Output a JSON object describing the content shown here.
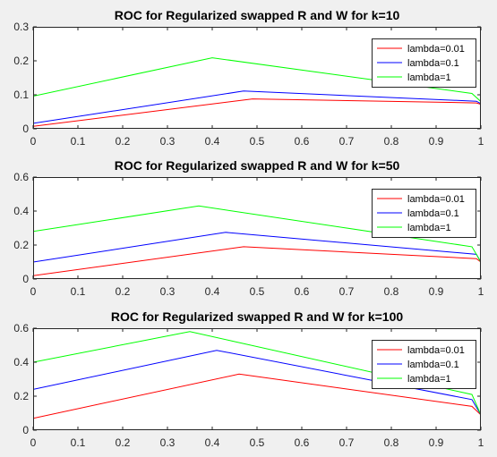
{
  "figure": {
    "background": "#f0f0f0",
    "axes_background": "#ffffff"
  },
  "colors": {
    "lambda_0_01": "#ff0000",
    "lambda_0_1": "#0000ff",
    "lambda_1": "#00ff00"
  },
  "chart_data": [
    {
      "type": "line",
      "title": "ROC for Regularized swapped R and W for k=10",
      "xlabel": "",
      "ylabel": "",
      "xlim": [
        0,
        1
      ],
      "ylim": [
        0,
        0.3
      ],
      "xticks": [
        "0",
        "0.1",
        "0.2",
        "0.3",
        "0.4",
        "0.5",
        "0.6",
        "0.7",
        "0.8",
        "0.9",
        "1"
      ],
      "yticks": [
        "0",
        "0.1",
        "0.2",
        "0.3"
      ],
      "grid": false,
      "legend_position": "top-right",
      "series": [
        {
          "name": "lambda=0.01",
          "color": "#ff0000",
          "x": [
            0,
            0,
            0.49,
            0.99,
            1
          ],
          "y": [
            0,
            0.007,
            0.088,
            0.076,
            0.072
          ]
        },
        {
          "name": "lambda=0.1",
          "color": "#0000ff",
          "x": [
            0,
            0,
            0.47,
            0.99,
            1
          ],
          "y": [
            0,
            0.016,
            0.111,
            0.081,
            0.074
          ]
        },
        {
          "name": "lambda=1",
          "color": "#00ff00",
          "x": [
            0,
            0,
            0.4,
            0.98,
            1
          ],
          "y": [
            0.07,
            0.096,
            0.209,
            0.104,
            0.08
          ]
        }
      ]
    },
    {
      "type": "line",
      "title": "ROC for Regularized swapped R and W for k=50",
      "xlabel": "",
      "ylabel": "",
      "xlim": [
        0,
        1
      ],
      "ylim": [
        0,
        0.6
      ],
      "xticks": [
        "0",
        "0.1",
        "0.2",
        "0.3",
        "0.4",
        "0.5",
        "0.6",
        "0.7",
        "0.8",
        "0.9",
        "1"
      ],
      "yticks": [
        "0",
        "0.2",
        "0.4",
        "0.6"
      ],
      "grid": false,
      "legend_position": "top-right",
      "series": [
        {
          "name": "lambda=0.01",
          "color": "#ff0000",
          "x": [
            0,
            0,
            0.47,
            0.99,
            1
          ],
          "y": [
            0,
            0.02,
            0.19,
            0.12,
            0.1
          ]
        },
        {
          "name": "lambda=0.1",
          "color": "#0000ff",
          "x": [
            0,
            0,
            0.43,
            0.99,
            1
          ],
          "y": [
            0,
            0.1,
            0.275,
            0.145,
            0.1
          ]
        },
        {
          "name": "lambda=1",
          "color": "#00ff00",
          "x": [
            0,
            0,
            0.37,
            0.98,
            1
          ],
          "y": [
            0.5,
            0.28,
            0.43,
            0.19,
            0.1
          ]
        }
      ]
    },
    {
      "type": "line",
      "title": "ROC for Regularized swapped R and W for k=100",
      "xlabel": "",
      "ylabel": "",
      "xlim": [
        0,
        1
      ],
      "ylim": [
        0,
        0.6
      ],
      "xticks": [
        "0",
        "0.1",
        "0.2",
        "0.3",
        "0.4",
        "0.5",
        "0.6",
        "0.7",
        "0.8",
        "0.9",
        "1"
      ],
      "yticks": [
        "0",
        "0.2",
        "0.4",
        "0.6"
      ],
      "grid": false,
      "legend_position": "top-right",
      "series": [
        {
          "name": "lambda=0.01",
          "color": "#ff0000",
          "x": [
            0,
            0,
            0.46,
            0.98,
            1
          ],
          "y": [
            0,
            0.07,
            0.33,
            0.14,
            0.09
          ]
        },
        {
          "name": "lambda=0.1",
          "color": "#0000ff",
          "x": [
            0,
            0,
            0.41,
            0.98,
            1
          ],
          "y": [
            0,
            0.24,
            0.47,
            0.18,
            0.09
          ]
        },
        {
          "name": "lambda=1",
          "color": "#00ff00",
          "x": [
            0,
            0,
            0.35,
            0.98,
            1
          ],
          "y": [
            0,
            0.4,
            0.58,
            0.21,
            0.09
          ]
        }
      ]
    }
  ]
}
